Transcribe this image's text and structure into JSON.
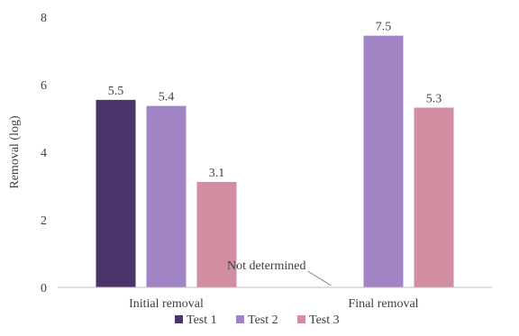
{
  "chart_data": {
    "type": "bar",
    "categories": [
      "Initial removal",
      "Final removal"
    ],
    "series": [
      {
        "name": "Test 1",
        "values": [
          5.55,
          null
        ],
        "labels": [
          "5.5",
          ""
        ],
        "color": "#4a3469"
      },
      {
        "name": "Test 2",
        "values": [
          5.37,
          7.45
        ],
        "labels": [
          "5.4",
          "7.5"
        ],
        "color": "#a084c4"
      },
      {
        "name": "Test 3",
        "values": [
          3.12,
          5.32
        ],
        "labels": [
          "3.1",
          "5.3"
        ],
        "color": "#d08ea0"
      }
    ],
    "xlabel": "",
    "ylabel": "Removal (log)",
    "ylim": [
      0,
      8
    ],
    "yticks": [
      0,
      2,
      4,
      6,
      8
    ],
    "grid": false,
    "legend_position": "bottom",
    "annotations": [
      {
        "text": "Not determined",
        "category": "Final removal",
        "series": "Test 1"
      }
    ]
  }
}
